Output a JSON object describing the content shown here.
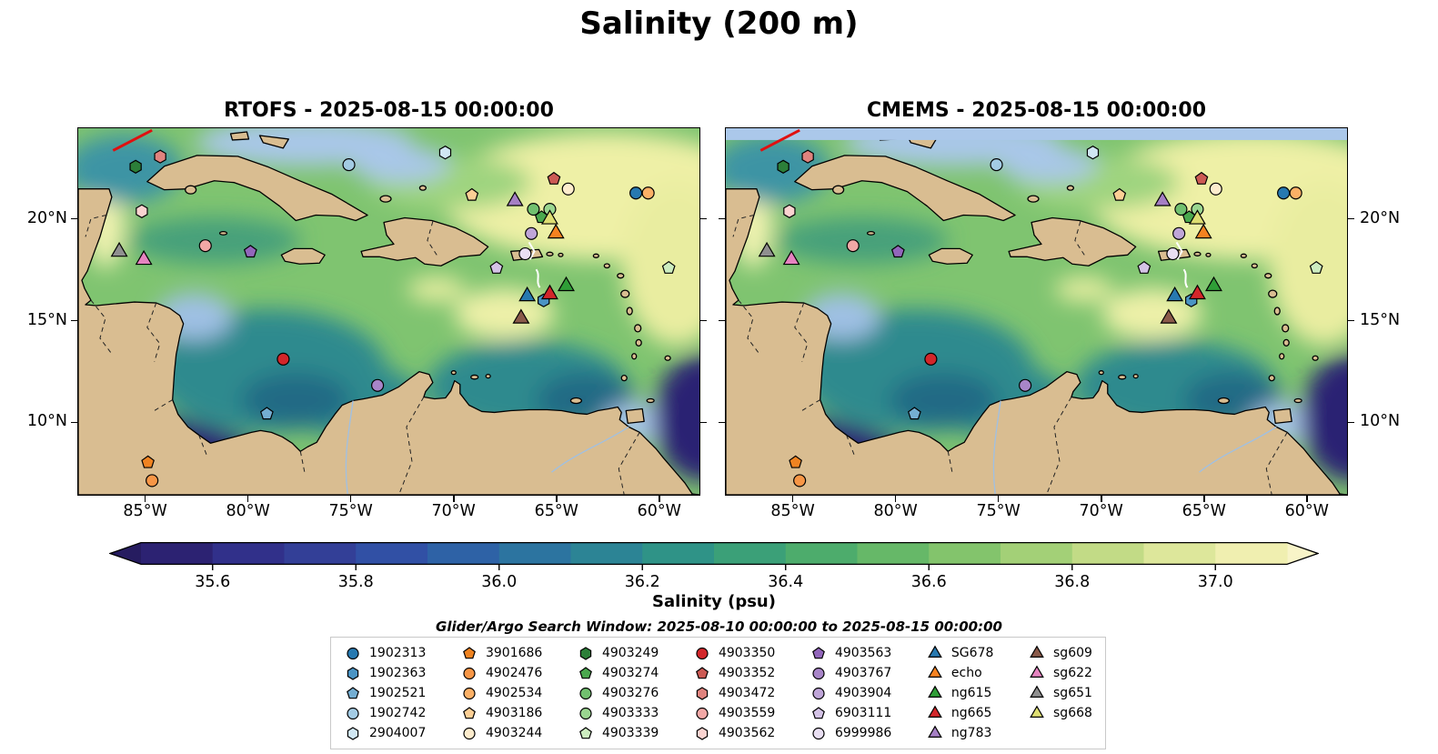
{
  "figure": {
    "title": "Salinity (200 m)",
    "colorbar_label": "Salinity (psu)",
    "search_window": "Glider/Argo Search Window: 2025-08-10 00:00:00 to 2025-08-15 00:00:00"
  },
  "panels": [
    {
      "title": "RTOFS - 2025-08-15 00:00:00"
    },
    {
      "title": "CMEMS - 2025-08-15 00:00:00"
    }
  ],
  "legend": {
    "columns": [
      {
        "items": [
          {
            "label": "1902313",
            "shape": "circle",
            "color": "#2779b0"
          },
          {
            "label": "1902363",
            "shape": "hexagon",
            "color": "#4a94c4"
          },
          {
            "label": "1902521",
            "shape": "pentagon",
            "color": "#74aed2"
          },
          {
            "label": "1902742",
            "shape": "circle",
            "color": "#a3cbe4"
          },
          {
            "label": "2904007",
            "shape": "hexagon",
            "color": "#d0e6f2"
          }
        ]
      },
      {
        "items": [
          {
            "label": "3901686",
            "shape": "pentagon",
            "color": "#ef8321"
          },
          {
            "label": "4902476",
            "shape": "circle",
            "color": "#f79646"
          },
          {
            "label": "4902534",
            "shape": "circle",
            "color": "#fbb066"
          },
          {
            "label": "4903186",
            "shape": "pentagon",
            "color": "#fccf95"
          },
          {
            "label": "4903244",
            "shape": "circle",
            "color": "#fdeccd"
          }
        ]
      },
      {
        "items": [
          {
            "label": "4903249",
            "shape": "hexagon",
            "color": "#2c7f39"
          },
          {
            "label": "4903274",
            "shape": "pentagon",
            "color": "#4aa84e"
          },
          {
            "label": "4903276",
            "shape": "circle",
            "color": "#71c06f"
          },
          {
            "label": "4903333",
            "shape": "circle",
            "color": "#9ad690"
          },
          {
            "label": "4903339",
            "shape": "pentagon",
            "color": "#cdedc0"
          }
        ]
      },
      {
        "items": [
          {
            "label": "4903350",
            "shape": "circle",
            "color": "#d3262a"
          },
          {
            "label": "4903352",
            "shape": "pentagon",
            "color": "#cc5a54"
          },
          {
            "label": "4903472",
            "shape": "hexagon",
            "color": "#e0837e"
          },
          {
            "label": "4903559",
            "shape": "circle",
            "color": "#f2a8a6"
          },
          {
            "label": "4903562",
            "shape": "hexagon",
            "color": "#fad3d0"
          }
        ]
      },
      {
        "items": [
          {
            "label": "4903563",
            "shape": "pentagon",
            "color": "#9266bb"
          },
          {
            "label": "4903767",
            "shape": "circle",
            "color": "#a885c8"
          },
          {
            "label": "4903904",
            "shape": "circle",
            "color": "#bfa5d8"
          },
          {
            "label": "6903111",
            "shape": "pentagon",
            "color": "#d4c3e6"
          },
          {
            "label": "6999986",
            "shape": "circle",
            "color": "#e9dff2"
          }
        ]
      },
      {
        "items": [
          {
            "label": "SG678",
            "shape": "triangle",
            "color": "#2779b0"
          },
          {
            "label": "echo",
            "shape": "triangle",
            "color": "#f58220"
          },
          {
            "label": "ng615",
            "shape": "triangle",
            "color": "#2f9e37"
          },
          {
            "label": "ng665",
            "shape": "triangle",
            "color": "#d3262a"
          },
          {
            "label": "ng783",
            "shape": "triangle",
            "color": "#a57fc4"
          }
        ]
      },
      {
        "items": [
          {
            "label": "sg609",
            "shape": "triangle",
            "color": "#8a5a4a"
          },
          {
            "label": "sg622",
            "shape": "triangle",
            "color": "#e583c0"
          },
          {
            "label": "sg651",
            "shape": "triangle",
            "color": "#8f8f8f"
          },
          {
            "label": "sg668",
            "shape": "triangle",
            "color": "#dede72"
          }
        ]
      }
    ]
  },
  "chart_data": {
    "type": "heatmap",
    "overlay": "scatter",
    "variable": "Salinity",
    "depth": "200 m",
    "units": "psu",
    "panels": [
      {
        "model": "RTOFS",
        "valid_time": "2025-08-15 00:00:00"
      },
      {
        "model": "CMEMS",
        "valid_time": "2025-08-15 00:00:00"
      }
    ],
    "extent": {
      "lon_min": -88.3,
      "lon_max": -58.0,
      "lat_min": 6.4,
      "lat_max": 24.5
    },
    "axes": {
      "lon_ticks": [
        {
          "value": -85,
          "label": "85°W"
        },
        {
          "value": -80,
          "label": "80°W"
        },
        {
          "value": -75,
          "label": "75°W"
        },
        {
          "value": -70,
          "label": "70°W"
        },
        {
          "value": -65,
          "label": "65°W"
        },
        {
          "value": -60,
          "label": "60°W"
        }
      ],
      "lat_ticks": [
        {
          "value": 20,
          "label": "20°N"
        },
        {
          "value": 15,
          "label": "15°N"
        },
        {
          "value": 10,
          "label": "10°N"
        }
      ]
    },
    "colorbar": {
      "min": 35.5,
      "max": 37.1,
      "tick_labels": [
        "35.6",
        "35.8",
        "36.0",
        "36.2",
        "36.4",
        "36.6",
        "36.8",
        "37.0"
      ],
      "segment_colors": [
        "#2c2272",
        "#31308a",
        "#333f97",
        "#3150a5",
        "#2e62a6",
        "#2c74a0",
        "#2c8495",
        "#2f9387",
        "#3ba078",
        "#4dac6c",
        "#66b868",
        "#83c46c",
        "#a3d077",
        "#c2db86",
        "#dde79b",
        "#f0efb0"
      ],
      "under_color": "#261c60",
      "over_color": "#f8f4c8"
    },
    "track": {
      "color": "#e01010",
      "points": [
        [
          -86.6,
          23.4
        ],
        [
          -84.7,
          24.4
        ]
      ]
    },
    "observations": [
      {
        "id": "1902313",
        "lon": -61.1,
        "lat": 21.3
      },
      {
        "id": "1902363",
        "lon": -65.6,
        "lat": 16.0
      },
      {
        "id": "1902521",
        "lon": -79.1,
        "lat": 10.4
      },
      {
        "id": "1902742",
        "lon": -75.1,
        "lat": 22.7
      },
      {
        "id": "2904007",
        "lon": -70.4,
        "lat": 23.3
      },
      {
        "id": "3901686",
        "lon": -84.9,
        "lat": 8.0
      },
      {
        "id": "4902476",
        "lon": -84.7,
        "lat": 7.1
      },
      {
        "id": "4902534",
        "lon": -60.5,
        "lat": 21.3
      },
      {
        "id": "4903186",
        "lon": -69.1,
        "lat": 21.2
      },
      {
        "id": "4903244",
        "lon": -64.4,
        "lat": 21.5
      },
      {
        "id": "4903249",
        "lon": -85.5,
        "lat": 22.6
      },
      {
        "id": "4903274",
        "lon": -65.7,
        "lat": 20.1
      },
      {
        "id": "4903276",
        "lon": -66.1,
        "lat": 20.5
      },
      {
        "id": "4903333",
        "lon": -65.3,
        "lat": 20.5
      },
      {
        "id": "4903339",
        "lon": -59.5,
        "lat": 17.6
      },
      {
        "id": "4903350",
        "lon": -78.3,
        "lat": 13.1
      },
      {
        "id": "4903352",
        "lon": -65.1,
        "lat": 22.0
      },
      {
        "id": "4903472",
        "lon": -84.3,
        "lat": 23.1
      },
      {
        "id": "4903559",
        "lon": -82.1,
        "lat": 18.7
      },
      {
        "id": "4903562",
        "lon": -85.2,
        "lat": 20.4
      },
      {
        "id": "4903563",
        "lon": -79.9,
        "lat": 18.4
      },
      {
        "id": "4903767",
        "lon": -73.7,
        "lat": 11.8
      },
      {
        "id": "4903904",
        "lon": -66.2,
        "lat": 19.3
      },
      {
        "id": "6903111",
        "lon": -67.9,
        "lat": 17.6
      },
      {
        "id": "6999986",
        "lon": -66.5,
        "lat": 18.3
      },
      {
        "id": "SG678",
        "lon": -66.4,
        "lat": 16.2
      },
      {
        "id": "echo",
        "lon": -65.0,
        "lat": 19.3
      },
      {
        "id": "ng615",
        "lon": -64.5,
        "lat": 16.7
      },
      {
        "id": "ng665",
        "lon": -65.3,
        "lat": 16.3
      },
      {
        "id": "ng783",
        "lon": -67.0,
        "lat": 20.9
      },
      {
        "id": "sg609",
        "lon": -66.7,
        "lat": 15.1
      },
      {
        "id": "sg622",
        "lon": -85.1,
        "lat": 18.0
      },
      {
        "id": "sg651",
        "lon": -86.3,
        "lat": 18.4
      },
      {
        "id": "sg668",
        "lon": -65.3,
        "lat": 20.0
      }
    ]
  }
}
